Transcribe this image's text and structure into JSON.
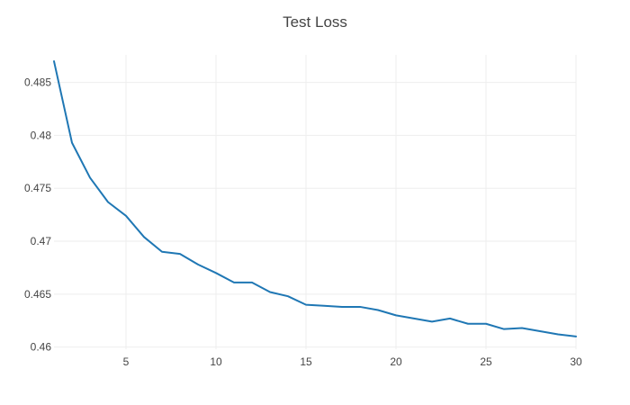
{
  "chart_data": {
    "type": "line",
    "title": "Test Loss",
    "xlabel": "",
    "ylabel": "",
    "xlim": [
      1,
      30
    ],
    "ylim": [
      0.4598,
      0.4876
    ],
    "grid": true,
    "legend": "none",
    "x_ticks": [
      5,
      10,
      15,
      20,
      25,
      30
    ],
    "x_tick_labels": [
      "5",
      "10",
      "15",
      "20",
      "25",
      "30"
    ],
    "y_ticks": [
      0.46,
      0.465,
      0.47,
      0.475,
      0.48,
      0.485
    ],
    "y_tick_labels": [
      "0.46",
      "0.465",
      "0.47",
      "0.475",
      "0.48",
      "0.485"
    ],
    "series": [
      {
        "color": "#1f77b4",
        "x": [
          1,
          2,
          3,
          4,
          5,
          6,
          7,
          8,
          9,
          10,
          11,
          12,
          13,
          14,
          15,
          16,
          17,
          18,
          19,
          20,
          21,
          22,
          23,
          24,
          25,
          26,
          27,
          28,
          29,
          30
        ],
        "y": [
          0.487,
          0.4793,
          0.476,
          0.4737,
          0.4724,
          0.4704,
          0.469,
          0.4688,
          0.4678,
          0.467,
          0.4661,
          0.4661,
          0.4652,
          0.4648,
          0.464,
          0.4639,
          0.4638,
          0.4638,
          0.4635,
          0.463,
          0.4627,
          0.4624,
          0.4627,
          0.4622,
          0.4622,
          0.4617,
          0.4618,
          0.4615,
          0.4612,
          0.461
        ]
      }
    ]
  }
}
